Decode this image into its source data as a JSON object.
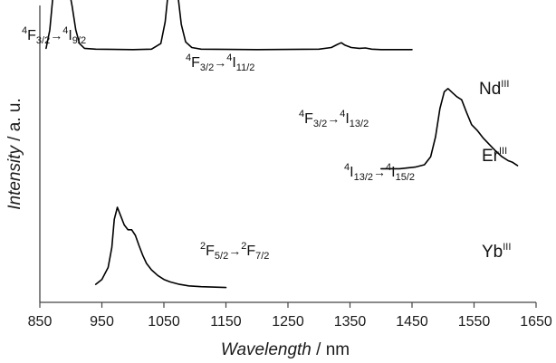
{
  "chart_data": {
    "type": "line",
    "xlabel_italic": "Wavelength",
    "xlabel_unit": " / nm",
    "ylabel_italic": "Intensity",
    "ylabel_unit": " / a. u.",
    "xlim": [
      850,
      1650
    ],
    "xticks": [
      850,
      950,
      1050,
      1150,
      1250,
      1350,
      1450,
      1550,
      1650
    ],
    "xtick_labels": [
      "850",
      "950",
      "1050",
      "1150",
      "1250",
      "1350",
      "1450",
      "1550",
      "1650"
    ],
    "y_axis_ticks": false,
    "series": [
      {
        "ion": "Nd",
        "ion_sup": "III",
        "color": "#000000",
        "baseline": 0.85,
        "scale": 0.27,
        "points": [
          [
            860,
            0.02
          ],
          [
            866,
            0.25
          ],
          [
            872,
            0.75
          ],
          [
            878,
            0.97
          ],
          [
            884,
            0.88
          ],
          [
            890,
            0.88
          ],
          [
            896,
            0.8
          ],
          [
            902,
            0.55
          ],
          [
            908,
            0.25
          ],
          [
            914,
            0.08
          ],
          [
            922,
            0.02
          ],
          [
            940,
            0.01
          ],
          [
            1000,
            0.005
          ],
          [
            1030,
            0.01
          ],
          [
            1045,
            0.08
          ],
          [
            1052,
            0.35
          ],
          [
            1058,
            0.8
          ],
          [
            1063,
            1.0
          ],
          [
            1068,
            0.93
          ],
          [
            1073,
            0.65
          ],
          [
            1078,
            0.32
          ],
          [
            1085,
            0.1
          ],
          [
            1095,
            0.03
          ],
          [
            1110,
            0.01
          ],
          [
            1200,
            0.005
          ],
          [
            1300,
            0.01
          ],
          [
            1320,
            0.03
          ],
          [
            1330,
            0.07
          ],
          [
            1336,
            0.09
          ],
          [
            1342,
            0.06
          ],
          [
            1352,
            0.03
          ],
          [
            1365,
            0.02
          ],
          [
            1375,
            0.025
          ],
          [
            1385,
            0.01
          ],
          [
            1400,
            0.005
          ],
          [
            1450,
            0.005
          ]
        ]
      },
      {
        "ion": "Er",
        "ion_sup": "III",
        "color": "#000000",
        "baseline": 0.45,
        "scale": 0.27,
        "points": [
          [
            1400,
            0.0
          ],
          [
            1430,
            0.0
          ],
          [
            1455,
            0.02
          ],
          [
            1470,
            0.05
          ],
          [
            1480,
            0.15
          ],
          [
            1488,
            0.4
          ],
          [
            1495,
            0.75
          ],
          [
            1502,
            0.96
          ],
          [
            1508,
            1.0
          ],
          [
            1515,
            0.95
          ],
          [
            1522,
            0.9
          ],
          [
            1530,
            0.86
          ],
          [
            1538,
            0.7
          ],
          [
            1546,
            0.55
          ],
          [
            1555,
            0.48
          ],
          [
            1565,
            0.38
          ],
          [
            1575,
            0.3
          ],
          [
            1585,
            0.22
          ],
          [
            1595,
            0.15
          ],
          [
            1605,
            0.1
          ],
          [
            1612,
            0.08
          ],
          [
            1620,
            0.04
          ]
        ]
      },
      {
        "ion": "Yb",
        "ion_sup": "III",
        "color": "#000000",
        "baseline": 0.05,
        "scale": 0.27,
        "points": [
          [
            940,
            0.04
          ],
          [
            950,
            0.1
          ],
          [
            960,
            0.25
          ],
          [
            966,
            0.5
          ],
          [
            970,
            0.85
          ],
          [
            975,
            1.0
          ],
          [
            980,
            0.9
          ],
          [
            986,
            0.78
          ],
          [
            992,
            0.72
          ],
          [
            998,
            0.72
          ],
          [
            1004,
            0.65
          ],
          [
            1010,
            0.52
          ],
          [
            1016,
            0.4
          ],
          [
            1022,
            0.3
          ],
          [
            1030,
            0.22
          ],
          [
            1040,
            0.15
          ],
          [
            1050,
            0.1
          ],
          [
            1060,
            0.07
          ],
          [
            1075,
            0.04
          ],
          [
            1090,
            0.02
          ],
          [
            1110,
            0.01
          ],
          [
            1150,
            0.0
          ]
        ]
      }
    ],
    "annotations": [
      {
        "a_sup": "4",
        "a_main": "F",
        "a_sub": "3/2",
        "arrow": "→",
        "b_sup": "4",
        "b_main": "I",
        "b_sub": "9/2"
      },
      {
        "a_sup": "4",
        "a_main": "F",
        "a_sub": "3/2",
        "arrow": "→",
        "b_sup": "4",
        "b_main": "I",
        "b_sub": "11/2"
      },
      {
        "a_sup": "4",
        "a_main": "F",
        "a_sub": "3/2",
        "arrow": "→",
        "b_sup": "4",
        "b_main": "I",
        "b_sub": "13/2"
      },
      {
        "a_sup": "4",
        "a_main": "I",
        "a_sub": "13/2",
        "arrow": "→",
        "b_sup": "4",
        "b_main": "I",
        "b_sub": "15/2"
      },
      {
        "a_sup": "2",
        "a_main": "F",
        "a_sub": "5/2",
        "arrow": "→",
        "b_sup": "2",
        "b_main": "F",
        "b_sub": "7/2"
      }
    ]
  }
}
